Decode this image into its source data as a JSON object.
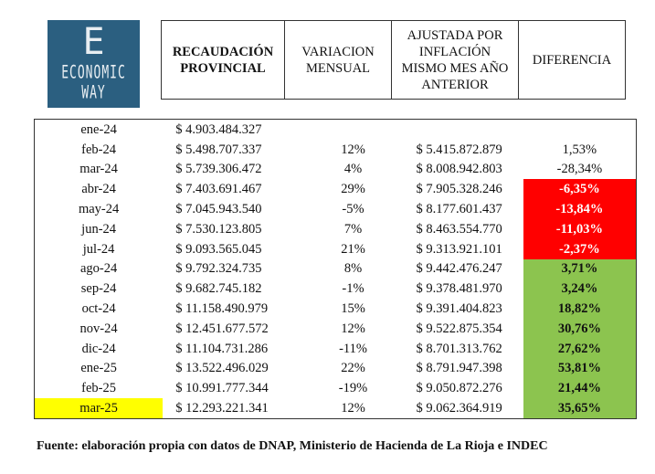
{
  "logo": {
    "letter": "E",
    "line1": "ECONOMIC",
    "line2": "WAY"
  },
  "header": [
    "RECAUDACIÓN PROVINCIAL",
    "VARIACION MENSUAL",
    "AJUSTADA POR INFLACIÓN MISMO MES AÑO ANTERIOR",
    "DIFERENCIA"
  ],
  "colors": {
    "negative": "#ff0000",
    "positive": "#8cc44f",
    "highlight": "#ffff00",
    "logo": "#2b5f80"
  },
  "rows": [
    {
      "mes": "ene-24",
      "rec": "$ 4.903.484.327",
      "var": "",
      "aj": "",
      "dif": "",
      "s": ""
    },
    {
      "mes": "feb-24",
      "rec": "$ 5.498.707.337",
      "var": "12%",
      "aj": "$ 5.415.872.879",
      "dif": "1,53%",
      "s": ""
    },
    {
      "mes": "mar-24",
      "rec": "$ 5.739.306.472",
      "var": "4%",
      "aj": "$ 8.008.942.803",
      "dif": "-28,34%",
      "s": ""
    },
    {
      "mes": "abr-24",
      "rec": "$ 7.403.691.467",
      "var": "29%",
      "aj": "$ 7.905.328.246",
      "dif": "-6,35%",
      "s": "neg"
    },
    {
      "mes": "may-24",
      "rec": "$ 7.045.943.540",
      "var": "-5%",
      "aj": "$ 8.177.601.437",
      "dif": "-13,84%",
      "s": "neg"
    },
    {
      "mes": "jun-24",
      "rec": "$ 7.530.123.805",
      "var": "7%",
      "aj": "$ 8.463.554.770",
      "dif": "-11,03%",
      "s": "neg"
    },
    {
      "mes": "jul-24",
      "rec": "$ 9.093.565.045",
      "var": "21%",
      "aj": "$ 9.313.921.101",
      "dif": "-2,37%",
      "s": "neg"
    },
    {
      "mes": "ago-24",
      "rec": "$ 9.792.324.735",
      "var": "8%",
      "aj": "$ 9.442.476.247",
      "dif": "3,71%",
      "s": "pos"
    },
    {
      "mes": "sep-24",
      "rec": "$ 9.682.745.182",
      "var": "-1%",
      "aj": "$ 9.378.481.970",
      "dif": "3,24%",
      "s": "pos"
    },
    {
      "mes": "oct-24",
      "rec": "$ 11.158.490.979",
      "var": "15%",
      "aj": "$ 9.391.404.823",
      "dif": "18,82%",
      "s": "pos"
    },
    {
      "mes": "nov-24",
      "rec": "$ 12.451.677.572",
      "var": "12%",
      "aj": "$ 9.522.875.354",
      "dif": "30,76%",
      "s": "pos"
    },
    {
      "mes": "dic-24",
      "rec": "$ 11.104.731.286",
      "var": "-11%",
      "aj": "$ 8.701.313.762",
      "dif": "27,62%",
      "s": "pos"
    },
    {
      "mes": "ene-25",
      "rec": "$ 13.522.496.029",
      "var": "22%",
      "aj": "$ 8.791.947.398",
      "dif": "53,81%",
      "s": "pos"
    },
    {
      "mes": "feb-25",
      "rec": "$ 10.991.777.344",
      "var": "-19%",
      "aj": "$ 9.050.872.276",
      "dif": "21,44%",
      "s": "pos"
    },
    {
      "mes": "mar-25",
      "rec": "$ 12.293.221.341",
      "var": "12%",
      "aj": "$ 9.062.364.919",
      "dif": "35,65%",
      "s": "pos",
      "hl": true
    }
  ],
  "footer": "Fuente: elaboración propia con datos de DNAP, Ministerio de Hacienda de La Rioja e INDEC"
}
